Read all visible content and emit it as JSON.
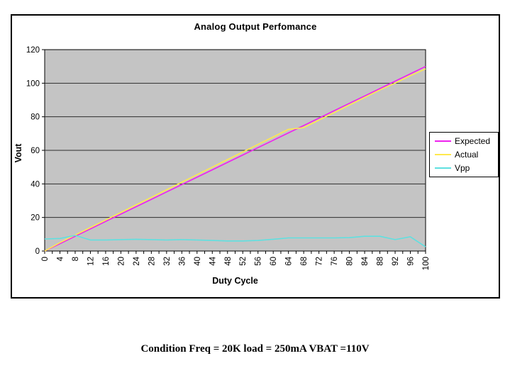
{
  "window": {
    "background": "#ffffff",
    "frame_border_color": "#000000"
  },
  "chart_data": {
    "type": "line",
    "title": "Analog Output Perfomance",
    "xlabel": "Duty Cycle",
    "ylabel": "Vout",
    "x": [
      0,
      4,
      8,
      12,
      16,
      20,
      24,
      28,
      32,
      36,
      40,
      44,
      48,
      52,
      56,
      60,
      64,
      68,
      72,
      76,
      80,
      84,
      88,
      92,
      96,
      100
    ],
    "xlim": [
      0,
      100
    ],
    "ylim": [
      0,
      120
    ],
    "yticks": [
      0,
      20,
      40,
      60,
      80,
      100,
      120
    ],
    "grid": "horizontal",
    "gridline_color": "#2e2e2e",
    "plot_bg": "#c4c4c4",
    "plot_border_color": "#000000",
    "legend_position": "right",
    "axis_text_color": "#000000",
    "series": [
      {
        "name": "Expected",
        "color": "#ee22ee",
        "values": [
          0,
          4.4,
          8.8,
          13.2,
          17.6,
          22,
          26.4,
          30.8,
          35.2,
          39.6,
          44,
          48.4,
          52.8,
          57.2,
          61.6,
          66,
          70.4,
          74.8,
          79.2,
          83.6,
          88,
          92.4,
          96.8,
          101.2,
          105.6,
          110
        ]
      },
      {
        "name": "Actual",
        "color": "#ffe84d",
        "values": [
          0,
          5,
          9.5,
          14,
          18.5,
          23,
          27.5,
          32,
          36.5,
          41,
          45.5,
          50,
          54.5,
          59,
          63.5,
          68,
          72.5,
          73.5,
          78,
          82.5,
          87,
          91.5,
          96,
          100,
          104.5,
          108.5
        ]
      },
      {
        "name": "Vpp",
        "color": "#5fe0e0",
        "values": [
          7.2,
          7.5,
          9.3,
          6.6,
          6.6,
          6.8,
          7,
          6.8,
          6.6,
          6.8,
          6.6,
          6.3,
          6,
          6,
          6.3,
          7,
          7.8,
          7.8,
          7.8,
          7.8,
          8,
          8.8,
          8.8,
          6.8,
          8.5,
          2.5
        ]
      }
    ]
  },
  "caption": "Condition Freq =  20K load = 250mA VBAT =110V"
}
